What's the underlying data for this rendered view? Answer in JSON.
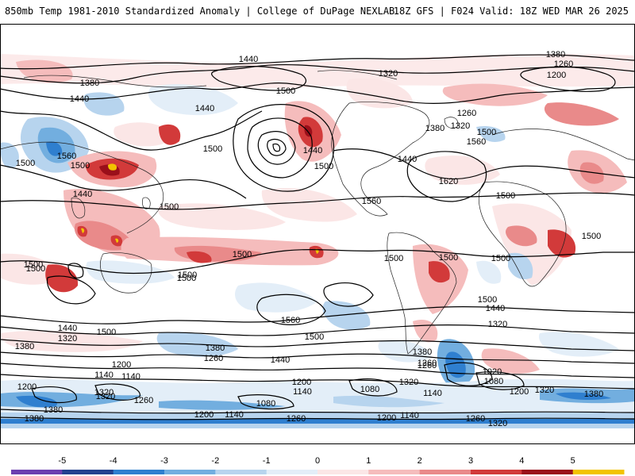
{
  "header": {
    "title_left": "850mb Temp 1981-2010 Standardized Anomaly | College of DuPage NEXLAB",
    "title_right": "18Z GFS | F024 Valid: 18Z WED MAR 26 2025"
  },
  "colorbar": {
    "ticks": [
      "-5",
      "-4",
      "-3",
      "-2",
      "-1",
      "0",
      "1",
      "2",
      "3",
      "4",
      "5"
    ],
    "colors": [
      "#6a3fb0",
      "#22418f",
      "#2f7fcf",
      "#72aedf",
      "#b7d4ee",
      "#e3eef8",
      "#fbe6e6",
      "#f5bcbc",
      "#e98a8a",
      "#d23a3a",
      "#9a0f1a",
      "#f2c400"
    ]
  },
  "map": {
    "contour_labels": [
      "1440",
      "1380",
      "1320",
      "1260",
      "1200",
      "1500",
      "1380",
      "1440",
      "1560",
      "1500",
      "1440",
      "1500",
      "1500",
      "1440",
      "1500",
      "1500",
      "1440",
      "1500",
      "1440",
      "1560",
      "1620",
      "1380",
      "1320",
      "1260",
      "1500",
      "1560",
      "1500",
      "1500",
      "1500",
      "1500",
      "1500",
      "1500",
      "1500",
      "1500",
      "1500",
      "1560",
      "1440",
      "1380",
      "1320",
      "1440",
      "1500",
      "1380",
      "1260",
      "1320",
      "1440",
      "1380",
      "1260",
      "1200",
      "1140",
      "1140",
      "1200",
      "1320",
      "1260",
      "1380",
      "1080",
      "1200",
      "1140",
      "1260",
      "1200",
      "1140",
      "1080",
      "1140",
      "1020",
      "1080",
      "1200",
      "1320",
      "1380",
      "1320",
      "1380",
      "1200",
      "1260",
      "1320",
      "1140",
      "1260",
      "1320",
      "1500",
      "1500"
    ]
  }
}
